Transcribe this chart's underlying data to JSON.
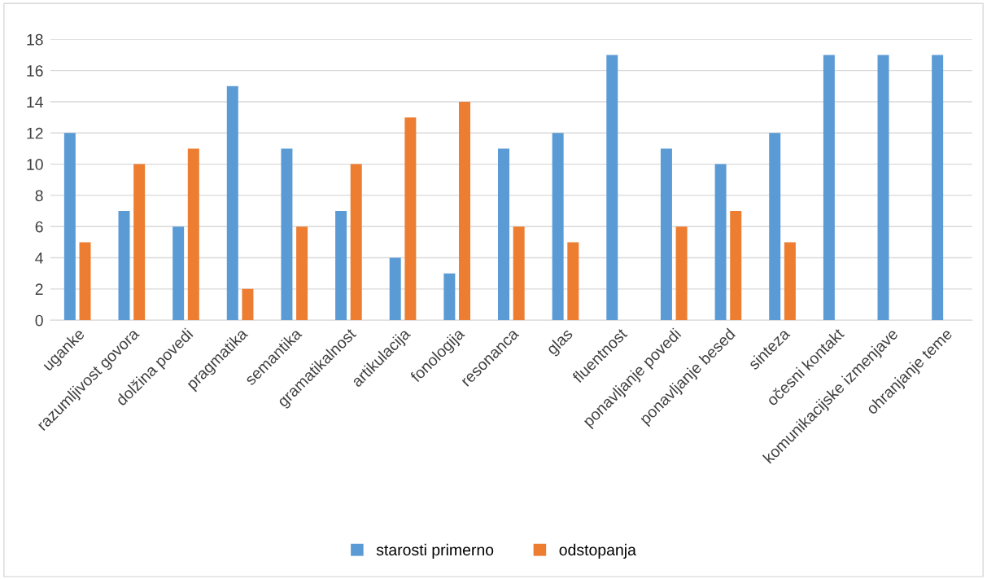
{
  "chart_data": {
    "type": "bar",
    "categories": [
      "uganke",
      "razumljivost govora",
      "dolžina povedi",
      "pragmatika",
      "semantika",
      "gramatikalnost",
      "artikulacija",
      "fonologija",
      "resonanca",
      "glas",
      "fluentnost",
      "ponavljanje povedi",
      "ponavljanje besed",
      "sinteza",
      "očesni kontakt",
      "komunikacijske izmenjave",
      "ohranjanje teme"
    ],
    "series": [
      {
        "name": "starosti primerno",
        "color": "#5b9bd5",
        "values": [
          12,
          7,
          6,
          15,
          11,
          7,
          4,
          3,
          11,
          12,
          17,
          11,
          10,
          12,
          17,
          17,
          17
        ]
      },
      {
        "name": "odstopanja",
        "color": "#ed7d31",
        "values": [
          5,
          10,
          11,
          2,
          6,
          10,
          13,
          14,
          6,
          5,
          null,
          6,
          7,
          5,
          null,
          null,
          null
        ]
      }
    ],
    "ylim": [
      0,
      18
    ],
    "yticks": [
      0,
      2,
      4,
      6,
      8,
      10,
      12,
      14,
      16,
      18
    ],
    "grid": "y",
    "legend": "bottom"
  }
}
